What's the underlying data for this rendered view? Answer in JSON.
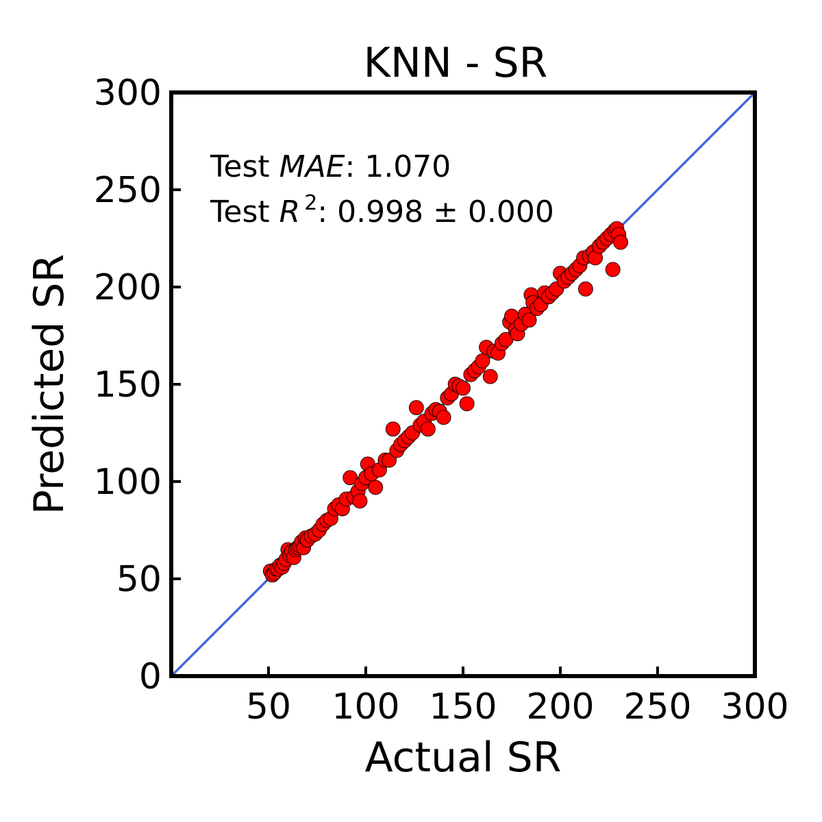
{
  "chart_data": {
    "type": "scatter",
    "title": "KNN - SR",
    "xlabel": "Actual SR",
    "ylabel": "Predicted SR",
    "xlim": [
      0,
      300
    ],
    "ylim": [
      0,
      300
    ],
    "xticks": [
      50,
      100,
      150,
      200,
      250,
      300
    ],
    "yticks": [
      0,
      50,
      100,
      150,
      200,
      250,
      300
    ],
    "grid": false,
    "annotations": {
      "mae_prefix": "Test ",
      "mae_symbol": "MAE",
      "mae_value": ": 1.070",
      "r2_prefix": "Test ",
      "r2_symbol": "R",
      "r2_exponent": "2",
      "r2_value": ": 0.998 ± 0.000"
    },
    "reference_line": {
      "from": [
        0,
        0
      ],
      "to": [
        300,
        300
      ],
      "color": "#4169e1"
    },
    "marker_color": "#ff0000",
    "points": [
      [
        51,
        54
      ],
      [
        52,
        52
      ],
      [
        53,
        53
      ],
      [
        54,
        55
      ],
      [
        55,
        55
      ],
      [
        56,
        57
      ],
      [
        57,
        56
      ],
      [
        58,
        58
      ],
      [
        59,
        60
      ],
      [
        60,
        65
      ],
      [
        61,
        62
      ],
      [
        62,
        64
      ],
      [
        63,
        61
      ],
      [
        64,
        65
      ],
      [
        65,
        66
      ],
      [
        66,
        67
      ],
      [
        67,
        69
      ],
      [
        68,
        66
      ],
      [
        69,
        71
      ],
      [
        70,
        70
      ],
      [
        72,
        72
      ],
      [
        74,
        73
      ],
      [
        76,
        75
      ],
      [
        78,
        78
      ],
      [
        80,
        80
      ],
      [
        82,
        81
      ],
      [
        84,
        86
      ],
      [
        86,
        88
      ],
      [
        88,
        86
      ],
      [
        90,
        91
      ],
      [
        92,
        102
      ],
      [
        94,
        92
      ],
      [
        96,
        95
      ],
      [
        97,
        90
      ],
      [
        98,
        99
      ],
      [
        100,
        102
      ],
      [
        101,
        109
      ],
      [
        103,
        104
      ],
      [
        105,
        97
      ],
      [
        107,
        106
      ],
      [
        110,
        111
      ],
      [
        112,
        111
      ],
      [
        114,
        127
      ],
      [
        116,
        116
      ],
      [
        118,
        119
      ],
      [
        120,
        121
      ],
      [
        122,
        123
      ],
      [
        124,
        125
      ],
      [
        126,
        138
      ],
      [
        128,
        129
      ],
      [
        130,
        131
      ],
      [
        132,
        127
      ],
      [
        134,
        135
      ],
      [
        136,
        137
      ],
      [
        138,
        136
      ],
      [
        140,
        133
      ],
      [
        142,
        143
      ],
      [
        144,
        145
      ],
      [
        146,
        150
      ],
      [
        148,
        149
      ],
      [
        150,
        148
      ],
      [
        152,
        140
      ],
      [
        154,
        155
      ],
      [
        156,
        157
      ],
      [
        158,
        159
      ],
      [
        160,
        162
      ],
      [
        162,
        169
      ],
      [
        164,
        154
      ],
      [
        166,
        167
      ],
      [
        168,
        166
      ],
      [
        170,
        171
      ],
      [
        172,
        173
      ],
      [
        174,
        182
      ],
      [
        175,
        185
      ],
      [
        177,
        178
      ],
      [
        178,
        176
      ],
      [
        180,
        181
      ],
      [
        182,
        186
      ],
      [
        184,
        183
      ],
      [
        185,
        196
      ],
      [
        186,
        192
      ],
      [
        188,
        189
      ],
      [
        190,
        191
      ],
      [
        192,
        197
      ],
      [
        194,
        195
      ],
      [
        196,
        197
      ],
      [
        198,
        199
      ],
      [
        200,
        207
      ],
      [
        202,
        203
      ],
      [
        204,
        205
      ],
      [
        206,
        207
      ],
      [
        208,
        209
      ],
      [
        210,
        211
      ],
      [
        212,
        215
      ],
      [
        213,
        199
      ],
      [
        215,
        216
      ],
      [
        217,
        218
      ],
      [
        218,
        215
      ],
      [
        220,
        221
      ],
      [
        222,
        223
      ],
      [
        224,
        225
      ],
      [
        226,
        227
      ],
      [
        227,
        209
      ],
      [
        228,
        229
      ],
      [
        229,
        230
      ],
      [
        230,
        227
      ],
      [
        231,
        223
      ]
    ]
  }
}
